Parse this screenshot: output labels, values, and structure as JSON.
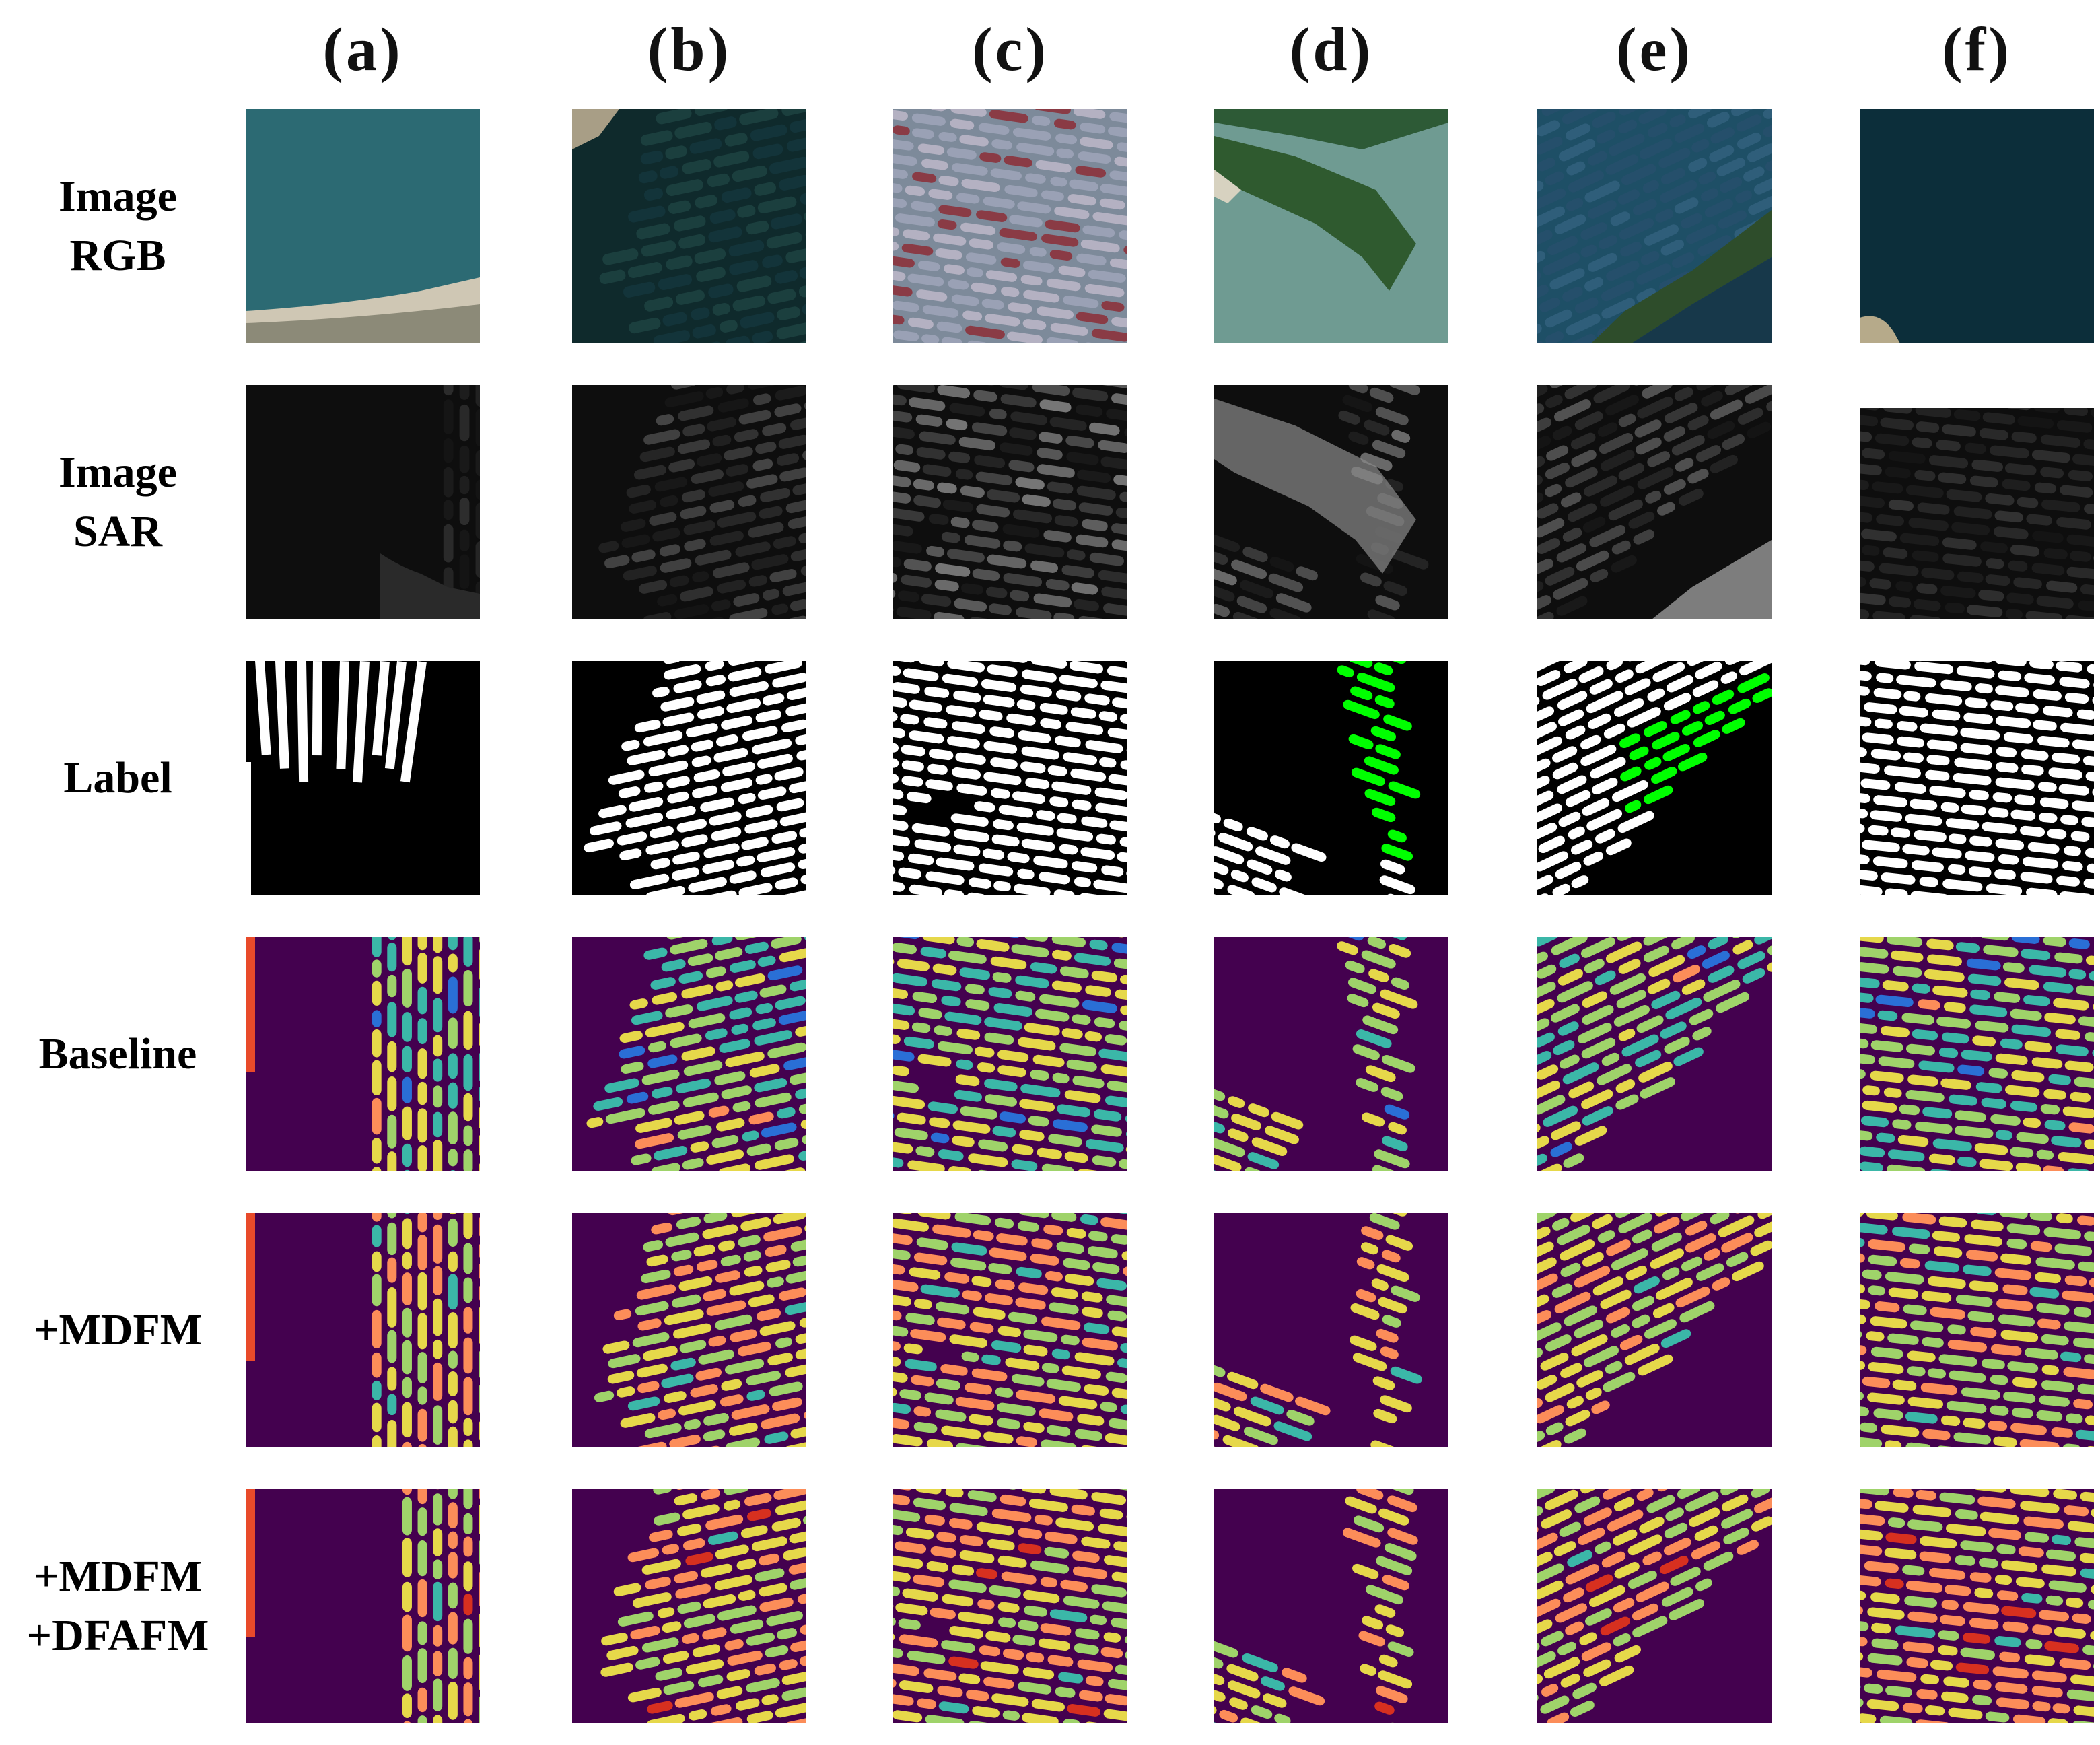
{
  "columns": [
    "(a)",
    "(b)",
    "(c)",
    "(d)",
    "(e)",
    "(f)"
  ],
  "rows": [
    {
      "kind": "rgb",
      "lines": [
        "Image",
        "RGB"
      ]
    },
    {
      "kind": "sar",
      "lines": [
        "Image",
        "SAR"
      ]
    },
    {
      "kind": "label",
      "lines": [
        "Label"
      ]
    },
    {
      "kind": "heat1",
      "lines": [
        "Baseline"
      ]
    },
    {
      "kind": "heat2",
      "lines": [
        "+MDFM"
      ]
    },
    {
      "kind": "heat3",
      "lines": [
        "+MDFM",
        "+DFAFM"
      ]
    }
  ],
  "palette": {
    "water_rgb": "#1f5f6a",
    "deep_water": "#0e2a33",
    "heat_bg": "#44014f",
    "label_fg": "#ffffff",
    "label_alt": "#00ff00",
    "label_bg": "#000000"
  }
}
